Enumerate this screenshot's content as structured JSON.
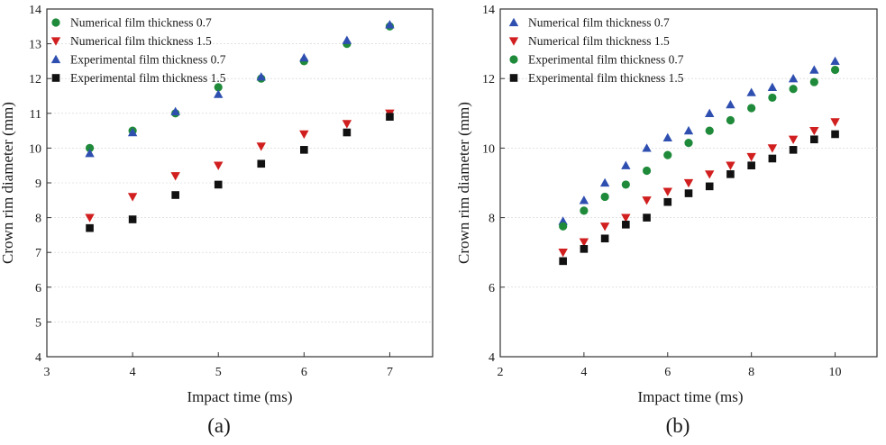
{
  "colors": {
    "num_07": "#2f4fb0",
    "num_15": "#d11f1f",
    "exp_07": "#1f8a3a",
    "exp_15": "#111111",
    "axis": "#333333",
    "grid": "#cfcfcf"
  },
  "chart_data": [
    {
      "type": "scatter",
      "panel_label": "(a)",
      "xlabel": "Impact time (ms)",
      "ylabel": "Crown rim diameter (mm)",
      "xlim": [
        3,
        7.5
      ],
      "ylim": [
        4,
        14
      ],
      "xticks": [
        "3",
        "4",
        "5",
        "6",
        "7"
      ],
      "yticks": [
        "4",
        "5",
        "6",
        "7",
        "8",
        "9",
        "10",
        "11",
        "12",
        "13",
        "14"
      ],
      "legend_position": "top-left",
      "series": [
        {
          "name": "Numerical film thickness 0.7",
          "marker": "circle",
          "color_key": "exp_07",
          "x": [
            3.5,
            4.0,
            4.5,
            5.0,
            5.5,
            6.0,
            6.5,
            7.0
          ],
          "y": [
            10.0,
            10.5,
            11.0,
            11.75,
            12.0,
            12.5,
            13.0,
            13.5
          ]
        },
        {
          "name": "Numerical film thickness 1.5",
          "marker": "triangle-down",
          "color_key": "num_15",
          "x": [
            3.5,
            4.0,
            4.5,
            5.0,
            5.5,
            6.0,
            6.5,
            7.0
          ],
          "y": [
            8.0,
            8.6,
            9.2,
            9.5,
            10.05,
            10.4,
            10.7,
            11.0
          ]
        },
        {
          "name": "Experimental film thickness 0.7",
          "marker": "triangle-up",
          "color_key": "num_07",
          "x": [
            3.5,
            4.0,
            4.5,
            5.0,
            5.5,
            6.0,
            6.5,
            7.0
          ],
          "y": [
            9.85,
            10.45,
            11.05,
            11.55,
            12.05,
            12.6,
            13.1,
            13.55
          ]
        },
        {
          "name": "Experimental film thickness 1.5",
          "marker": "square",
          "color_key": "exp_15",
          "x": [
            3.5,
            4.0,
            4.5,
            5.0,
            5.5,
            6.0,
            6.5,
            7.0
          ],
          "y": [
            7.7,
            7.95,
            8.65,
            8.95,
            9.55,
            9.95,
            10.45,
            10.9
          ]
        }
      ]
    },
    {
      "type": "scatter",
      "panel_label": "(b)",
      "xlabel": "Impact time (ms)",
      "ylabel": "Crown rim diameter (mm)",
      "xlim": [
        2,
        11
      ],
      "ylim": [
        4,
        14
      ],
      "xticks": [
        "2",
        "4",
        "6",
        "8",
        "10"
      ],
      "yticks": [
        "4",
        "6",
        "8",
        "10",
        "12",
        "14"
      ],
      "legend_position": "top-left",
      "series": [
        {
          "name": "Numerical film thickness 0.7",
          "marker": "triangle-up",
          "color_key": "num_07",
          "x": [
            3.5,
            4.0,
            4.5,
            5.0,
            5.5,
            6.0,
            6.5,
            7.0,
            7.5,
            8.0,
            8.5,
            9.0,
            9.5,
            10.0
          ],
          "y": [
            7.9,
            8.5,
            9.0,
            9.5,
            10.0,
            10.3,
            10.5,
            11.0,
            11.25,
            11.6,
            11.75,
            12.0,
            12.25,
            12.5
          ]
        },
        {
          "name": "Numerical film thickness 1.5",
          "marker": "triangle-down",
          "color_key": "num_15",
          "x": [
            3.5,
            4.0,
            4.5,
            5.0,
            5.5,
            6.0,
            6.5,
            7.0,
            7.5,
            8.0,
            8.5,
            9.0,
            9.5,
            10.0
          ],
          "y": [
            7.0,
            7.3,
            7.75,
            8.0,
            8.5,
            8.75,
            9.0,
            9.25,
            9.5,
            9.75,
            10.0,
            10.25,
            10.5,
            10.75
          ]
        },
        {
          "name": "Experimental film thickness 0.7",
          "marker": "circle",
          "color_key": "exp_07",
          "x": [
            3.5,
            4.0,
            4.5,
            5.0,
            5.5,
            6.0,
            6.5,
            7.0,
            7.5,
            8.0,
            8.5,
            9.0,
            9.5,
            10.0
          ],
          "y": [
            7.75,
            8.2,
            8.6,
            8.95,
            9.35,
            9.8,
            10.15,
            10.5,
            10.8,
            11.15,
            11.45,
            11.7,
            11.9,
            12.25
          ]
        },
        {
          "name": "Experimental film thickness 1.5",
          "marker": "square",
          "color_key": "exp_15",
          "x": [
            3.5,
            4.0,
            4.5,
            5.0,
            5.5,
            6.0,
            6.5,
            7.0,
            7.5,
            8.0,
            8.5,
            9.0,
            9.5,
            10.0
          ],
          "y": [
            6.75,
            7.1,
            7.4,
            7.8,
            8.0,
            8.45,
            8.7,
            8.9,
            9.25,
            9.5,
            9.7,
            9.95,
            10.25,
            10.4
          ]
        }
      ]
    }
  ]
}
